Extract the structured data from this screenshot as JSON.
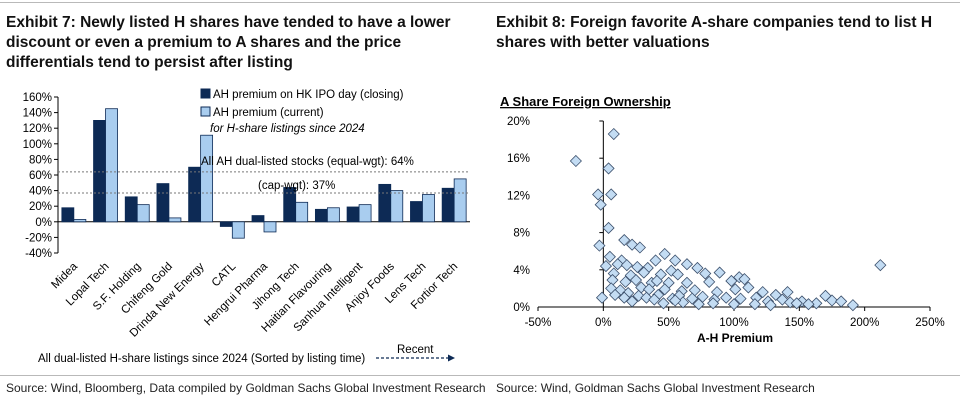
{
  "exhibit7": {
    "title": "Exhibit 7: Newly listed H shares have tended to have a lower discount or even a premium to A shares and the price differentials tend to persist after listing",
    "source": "Source: Wind, Bloomberg, Data compiled by Goldman Sachs Global Investment Research"
  },
  "exhibit8": {
    "title": "Exhibit 8: Foreign favorite A-share companies tend to list H shares with better valuations",
    "source": "Source: Wind, Goldman Sachs Global Investment Research"
  },
  "colors": {
    "series1": "#0d2a55",
    "series2": "#a9cdef",
    "edge": "#0d2a55",
    "point": "#c3dcf3"
  },
  "chart_data": [
    {
      "type": "bar",
      "categories": [
        "Midea",
        "Lopal Tech",
        "S.F. Holding",
        "Chifeng Gold",
        "Drinda New Energy",
        "CATL",
        "Hengrui Pharma",
        "Jihong Tech",
        "Haitian Flavouring",
        "Sanhua Intelligent",
        "Anjoy Foods",
        "Lens Tech",
        "Fortior Tech"
      ],
      "series": [
        {
          "name": "AH premium on HK IPO day (closing)",
          "values": [
            18,
            130,
            32,
            49,
            70,
            -6,
            8,
            44,
            16,
            19,
            48,
            26,
            43
          ]
        },
        {
          "name": "AH premium (current)",
          "values": [
            3,
            145,
            22,
            5,
            111,
            -21,
            -13,
            25,
            18,
            22,
            40,
            35,
            55
          ]
        }
      ],
      "yticks": [
        -40,
        -20,
        0,
        20,
        40,
        60,
        80,
        100,
        120,
        140,
        160
      ],
      "ytick_labels": [
        "-40%",
        "-20%",
        "0%",
        "20%",
        "40%",
        "60%",
        "80%",
        "100%",
        "120%",
        "140%",
        "160%"
      ],
      "ylim": [
        -40,
        160
      ],
      "legend_note": "for H-share listings since 2024",
      "reference_lines": [
        {
          "label": "All AH dual-listed stocks (equal-wgt): 64%",
          "value": 64
        },
        {
          "label": "(cap-wgt): 37%",
          "value": 37
        }
      ],
      "xlabel": "All dual-listed H-share listings since 2024 (Sorted by listing time)",
      "arrow_label": "Recent"
    },
    {
      "type": "scatter",
      "title": "A Share Foreign Ownership",
      "xlabel": "A-H Premium",
      "xlim": [
        -50,
        250
      ],
      "ylim": [
        0,
        20
      ],
      "xticks": [
        -50,
        0,
        50,
        100,
        150,
        200,
        250
      ],
      "xtick_labels": [
        "-50%",
        "0%",
        "50%",
        "100%",
        "150%",
        "200%",
        "250%"
      ],
      "yticks": [
        0,
        4,
        8,
        12,
        16,
        20
      ],
      "ytick_labels": [
        "0%",
        "4%",
        "8%",
        "12%",
        "16%",
        "20%"
      ],
      "points": [
        [
          8,
          18.6
        ],
        [
          -21,
          15.7
        ],
        [
          4,
          14.9
        ],
        [
          -4,
          12.1
        ],
        [
          6,
          12.1
        ],
        [
          -2,
          11.0
        ],
        [
          4,
          8.5
        ],
        [
          -3,
          6.6
        ],
        [
          16,
          7.2
        ],
        [
          22,
          6.7
        ],
        [
          28,
          6.4
        ],
        [
          47,
          5.7
        ],
        [
          5,
          5.4
        ],
        [
          14,
          5.0
        ],
        [
          40,
          5.0
        ],
        [
          55,
          5.0
        ],
        [
          2,
          4.4
        ],
        [
          11,
          4.6
        ],
        [
          18,
          4.5
        ],
        [
          26,
          4.3
        ],
        [
          34,
          4.2
        ],
        [
          64,
          4.6
        ],
        [
          72,
          4.2
        ],
        [
          78,
          3.6
        ],
        [
          8,
          3.6
        ],
        [
          21,
          3.4
        ],
        [
          31,
          3.7
        ],
        [
          44,
          3.5
        ],
        [
          52,
          3.9
        ],
        [
          57,
          3.5
        ],
        [
          89,
          3.7
        ],
        [
          104,
          3.2
        ],
        [
          7,
          2.9
        ],
        [
          17,
          2.7
        ],
        [
          25,
          2.9
        ],
        [
          37,
          2.6
        ],
        [
          41,
          2.8
        ],
        [
          50,
          2.6
        ],
        [
          64,
          2.6
        ],
        [
          81,
          2.7
        ],
        [
          98,
          2.8
        ],
        [
          108,
          3.0
        ],
        [
          6,
          2.0
        ],
        [
          13,
          1.8
        ],
        [
          29,
          2.1
        ],
        [
          35,
          1.9
        ],
        [
          47,
          1.9
        ],
        [
          60,
          1.7
        ],
        [
          70,
          1.8
        ],
        [
          87,
          1.6
        ],
        [
          101,
          1.9
        ],
        [
          111,
          2.1
        ],
        [
          122,
          1.6
        ],
        [
          132,
          1.3
        ],
        [
          -1,
          1.0
        ],
        [
          9,
          1.3
        ],
        [
          19,
          1.5
        ],
        [
          27,
          1.2
        ],
        [
          33,
          1.0
        ],
        [
          42,
          1.3
        ],
        [
          53,
          0.9
        ],
        [
          58,
          1.2
        ],
        [
          68,
          0.9
        ],
        [
          76,
          1.1
        ],
        [
          85,
          0.8
        ],
        [
          94,
          1.0
        ],
        [
          105,
          0.9
        ],
        [
          117,
          1.0
        ],
        [
          126,
          0.6
        ],
        [
          137,
          0.8
        ],
        [
          143,
          0.5
        ],
        [
          152,
          0.6
        ],
        [
          163,
          0.4
        ],
        [
          170,
          1.2
        ],
        [
          175,
          0.7
        ],
        [
          182,
          0.6
        ],
        [
          191,
          0.2
        ],
        [
          100,
          0.3
        ],
        [
          116,
          0.3
        ],
        [
          128,
          0.2
        ],
        [
          141,
          1.6
        ],
        [
          148,
          0.4
        ],
        [
          157,
          0.3
        ],
        [
          22,
          0.6
        ],
        [
          46,
          0.4
        ],
        [
          61,
          0.5
        ],
        [
          73,
          0.3
        ],
        [
          84,
          0.4
        ],
        [
          16,
          1.0
        ],
        [
          39,
          0.8
        ],
        [
          55,
          0.7
        ],
        [
          212,
          4.5
        ]
      ]
    }
  ]
}
